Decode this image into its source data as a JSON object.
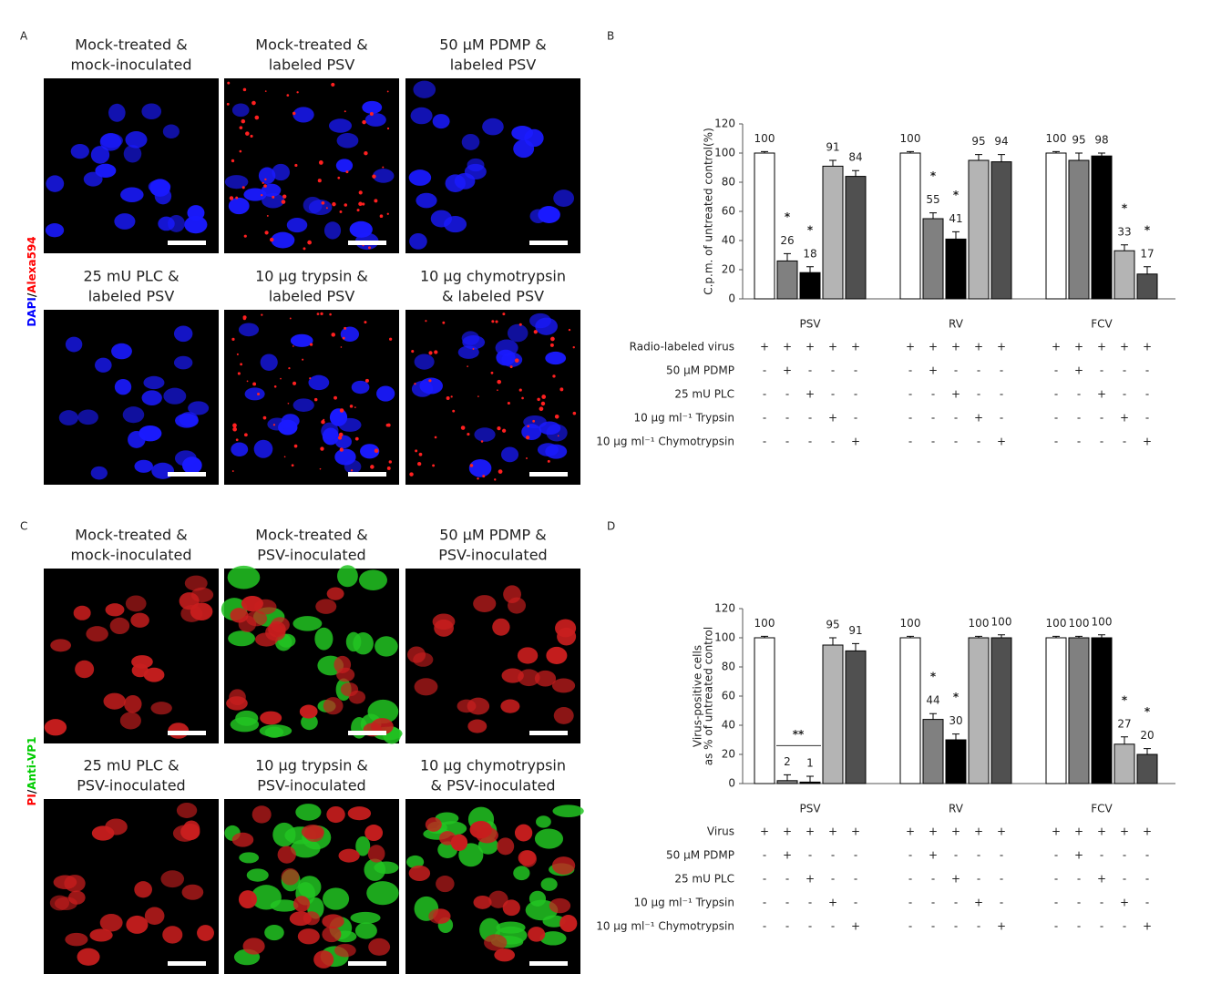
{
  "panels": [
    {
      "letter": "A",
      "channel": [
        {
          "text": "DAPI",
          "color": "#0000ff"
        },
        {
          "text": "/",
          "color": "#000000"
        },
        {
          "text": "Alexa594",
          "color": "#ff0000"
        }
      ],
      "images": [
        {
          "caption": [
            "Mock-treated &",
            "mock-inoculated"
          ]
        },
        {
          "caption": [
            "Mock-treated &",
            "labeled PSV"
          ]
        },
        {
          "caption": [
            "50 μM PDMP &",
            "labeled PSV"
          ]
        },
        {
          "caption": [
            "25 mU PLC &",
            "labeled PSV"
          ]
        },
        {
          "caption": [
            "10 μg trypsin &",
            "labeled PSV"
          ]
        },
        {
          "caption": [
            "10 μg chymotrypsin",
            "& labeled PSV"
          ]
        }
      ]
    },
    {
      "letter": "C",
      "channel": [
        {
          "text": "PI",
          "color": "#ff0000"
        },
        {
          "text": "/",
          "color": "#000000"
        },
        {
          "text": "Anti-VP1",
          "color": "#00cc00"
        }
      ],
      "images": [
        {
          "caption": [
            "Mock-treated &",
            "mock-inoculated"
          ]
        },
        {
          "caption": [
            "Mock-treated &",
            "PSV-inoculated"
          ]
        },
        {
          "caption": [
            "50 μM PDMP &",
            "PSV-inoculated"
          ]
        },
        {
          "caption": [
            "25 mU PLC &",
            "PSV-inoculated"
          ]
        },
        {
          "caption": [
            "10 μg trypsin &",
            "PSV-inoculated"
          ]
        },
        {
          "caption": [
            "10 μg chymotrypsin",
            "& PSV-inoculated"
          ]
        }
      ]
    }
  ],
  "chart_data": [
    {
      "type": "bar",
      "letter": "B",
      "y_label": [
        "C.p.m. of untreated control(%)"
      ],
      "categories": [
        "PSV",
        "RV",
        "FCV"
      ],
      "ylim": [
        0,
        120
      ],
      "yticks": [
        0,
        20,
        40,
        60,
        80,
        100,
        120
      ],
      "series": [
        {
          "color": "#ffffff",
          "values": [
            100,
            100,
            100
          ],
          "errors": [
            1,
            1,
            1
          ],
          "significance": [
            null,
            null,
            null
          ]
        },
        {
          "color": "#808080",
          "values": [
            26,
            55,
            95
          ],
          "errors": [
            5,
            4,
            5
          ],
          "significance": [
            "*",
            "*",
            null
          ]
        },
        {
          "color": "#000000",
          "values": [
            18,
            41,
            98
          ],
          "errors": [
            4,
            5,
            2
          ],
          "significance": [
            "*",
            "*",
            null
          ]
        },
        {
          "color": "#b4b4b4",
          "values": [
            91,
            95,
            33
          ],
          "errors": [
            4,
            4,
            4
          ],
          "significance": [
            null,
            null,
            "*"
          ]
        },
        {
          "color": "#505050",
          "values": [
            84,
            94,
            17
          ],
          "errors": [
            4,
            5,
            5
          ],
          "significance": [
            null,
            null,
            "*"
          ]
        }
      ],
      "treatments": [
        {
          "label": "Radio-labeled virus",
          "signs": [
            "+",
            "+",
            "+",
            "+",
            "+",
            "+",
            "+",
            "+",
            "+",
            "+",
            "+",
            "+",
            "+",
            "+",
            "+"
          ]
        },
        {
          "label": "50 µM PDMP",
          "signs": [
            "-",
            "+",
            "-",
            "-",
            "-",
            "-",
            "+",
            "-",
            "-",
            "-",
            "-",
            "+",
            "-",
            "-",
            "-"
          ]
        },
        {
          "label": "25 mU PLC",
          "signs": [
            "-",
            "-",
            "+",
            "-",
            "-",
            "-",
            "-",
            "+",
            "-",
            "-",
            "-",
            "-",
            "+",
            "-",
            "-"
          ]
        },
        {
          "label": "10 µg ml⁻¹ Trypsin",
          "signs": [
            "-",
            "-",
            "-",
            "+",
            "-",
            "-",
            "-",
            "-",
            "+",
            "-",
            "-",
            "-",
            "-",
            "+",
            "-"
          ]
        },
        {
          "label": "10 µg ml⁻¹ Chymotrypsin",
          "signs": [
            "-",
            "-",
            "-",
            "-",
            "+",
            "-",
            "-",
            "-",
            "-",
            "+",
            "-",
            "-",
            "-",
            "-",
            "+"
          ]
        }
      ]
    },
    {
      "type": "bar",
      "letter": "D",
      "y_label": [
        "Virus-positive cells",
        "as % of untreated control"
      ],
      "categories": [
        "PSV",
        "RV",
        "FCV"
      ],
      "ylim": [
        0,
        120
      ],
      "yticks": [
        0,
        20,
        40,
        60,
        80,
        100,
        120
      ],
      "series": [
        {
          "color": "#ffffff",
          "values": [
            100,
            100,
            100
          ],
          "errors": [
            1,
            1,
            1
          ],
          "significance": [
            null,
            null,
            null
          ]
        },
        {
          "color": "#808080",
          "values": [
            2,
            44,
            100
          ],
          "errors": [
            4,
            4,
            1
          ],
          "significance": [
            "**",
            "*",
            null
          ]
        },
        {
          "color": "#000000",
          "values": [
            1,
            30,
            100
          ],
          "errors": [
            4,
            4,
            2
          ],
          "significance": [
            null,
            "*",
            null
          ]
        },
        {
          "color": "#b4b4b4",
          "values": [
            95,
            100,
            27
          ],
          "errors": [
            5,
            1,
            5
          ],
          "significance": [
            null,
            null,
            "*"
          ]
        },
        {
          "color": "#505050",
          "values": [
            91,
            100,
            20
          ],
          "errors": [
            5,
            2,
            4
          ],
          "significance": [
            null,
            null,
            "*"
          ]
        }
      ],
      "treatments": [
        {
          "label": "Virus",
          "signs": [
            "+",
            "+",
            "+",
            "+",
            "+",
            "+",
            "+",
            "+",
            "+",
            "+",
            "+",
            "+",
            "+",
            "+",
            "+"
          ]
        },
        {
          "label": "50 µM PDMP",
          "signs": [
            "-",
            "+",
            "-",
            "-",
            "-",
            "-",
            "+",
            "-",
            "-",
            "-",
            "-",
            "+",
            "-",
            "-",
            "-"
          ]
        },
        {
          "label": "25 mU PLC",
          "signs": [
            "-",
            "-",
            "+",
            "-",
            "-",
            "-",
            "-",
            "+",
            "-",
            "-",
            "-",
            "-",
            "+",
            "-",
            "-"
          ]
        },
        {
          "label": "10 µg ml⁻¹ Trypsin",
          "signs": [
            "-",
            "-",
            "-",
            "+",
            "-",
            "-",
            "-",
            "-",
            "+",
            "-",
            "-",
            "-",
            "-",
            "+",
            "-"
          ]
        },
        {
          "label": "10 µg ml⁻¹ Chymotrypsin",
          "signs": [
            "-",
            "-",
            "-",
            "-",
            "+",
            "-",
            "-",
            "-",
            "-",
            "+",
            "-",
            "-",
            "-",
            "-",
            "+"
          ]
        }
      ]
    }
  ]
}
